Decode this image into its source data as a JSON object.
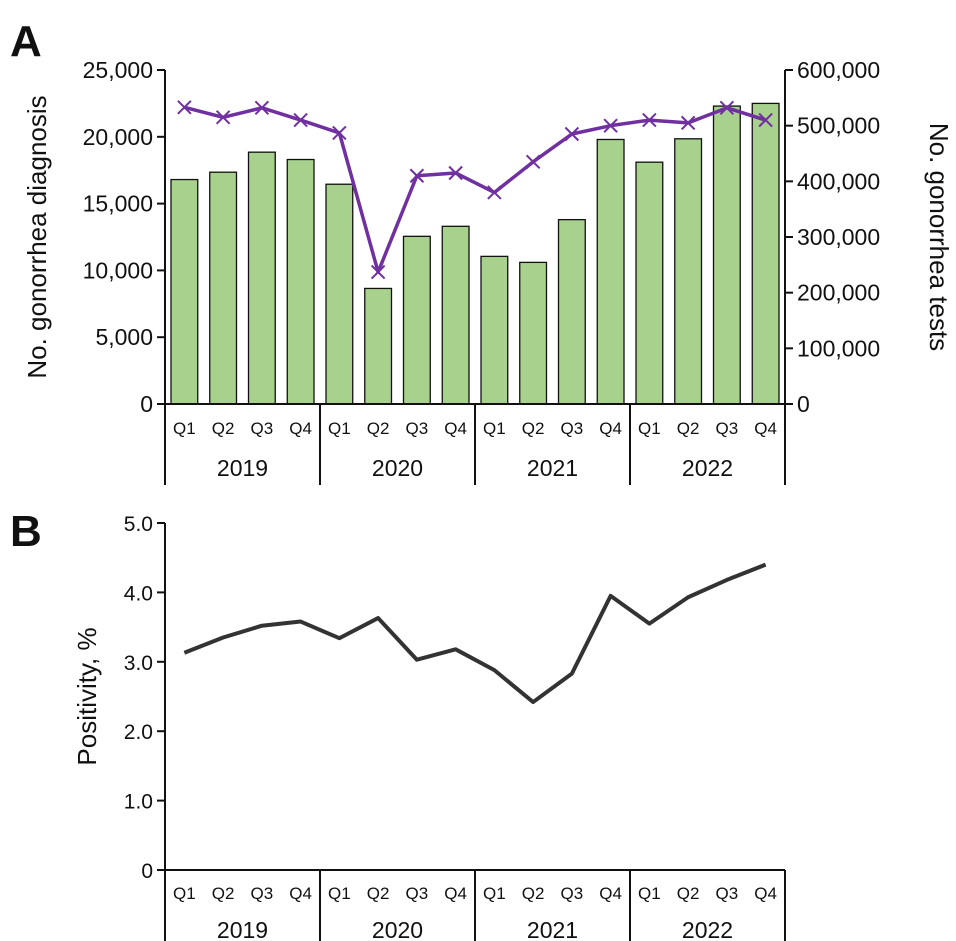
{
  "chart_data": [
    {
      "panel": "A",
      "type": "bar",
      "categories": [
        "Q1",
        "Q2",
        "Q3",
        "Q4",
        "Q1",
        "Q2",
        "Q3",
        "Q4",
        "Q1",
        "Q2",
        "Q3",
        "Q4",
        "Q1",
        "Q2",
        "Q3",
        "Q4"
      ],
      "groups": [
        {
          "label": "2019",
          "start": 0,
          "end": 3
        },
        {
          "label": "2020",
          "start": 4,
          "end": 7
        },
        {
          "label": "2021",
          "start": 8,
          "end": 11
        },
        {
          "label": "2022",
          "start": 12,
          "end": 15
        }
      ],
      "series": [
        {
          "kind": "bar",
          "axis": "left",
          "color": "#a9d18e",
          "values": [
            16800,
            17350,
            18850,
            18300,
            16450,
            8650,
            12550,
            13300,
            11050,
            10600,
            13800,
            19800,
            18100,
            19850,
            22300,
            22500
          ]
        },
        {
          "kind": "line",
          "axis": "right",
          "color": "#7030a0",
          "marker": "x",
          "values": [
            533000,
            515000,
            532000,
            510000,
            487000,
            237000,
            410000,
            415000,
            380000,
            435000,
            485000,
            500000,
            510000,
            505000,
            532000,
            510000
          ]
        }
      ],
      "ylabel": "No. gonorrhea diagnosis",
      "y2label": "No. gonorrhea tests",
      "ylim": [
        0,
        25000
      ],
      "y2lim": [
        0,
        600000
      ],
      "yticks": [
        "0",
        "5,000",
        "10,000",
        "15,000",
        "20,000",
        "25,000"
      ],
      "y2ticks": [
        "0",
        "100,000",
        "200,000",
        "300,000",
        "400,000",
        "500,000",
        "600,000"
      ]
    },
    {
      "panel": "B",
      "type": "line",
      "categories": [
        "Q1",
        "Q2",
        "Q3",
        "Q4",
        "Q1",
        "Q2",
        "Q3",
        "Q4",
        "Q1",
        "Q2",
        "Q3",
        "Q4",
        "Q1",
        "Q2",
        "Q3",
        "Q4"
      ],
      "groups": [
        {
          "label": "2019",
          "start": 0,
          "end": 3
        },
        {
          "label": "2020",
          "start": 4,
          "end": 7
        },
        {
          "label": "2021",
          "start": 8,
          "end": 11
        },
        {
          "label": "2022",
          "start": 12,
          "end": 15
        }
      ],
      "series": [
        {
          "kind": "line",
          "color": "#333333",
          "values": [
            3.13,
            3.35,
            3.52,
            3.58,
            3.34,
            3.63,
            3.03,
            3.18,
            2.88,
            2.42,
            2.83,
            3.95,
            3.55,
            3.93,
            4.18,
            4.4
          ]
        }
      ],
      "ylabel": "Positivity, %",
      "ylim": [
        0,
        5
      ],
      "yticks": [
        "0",
        "1.0",
        "2.0",
        "3.0",
        "4.0",
        "5.0"
      ]
    }
  ],
  "panels": {
    "a_label": "A",
    "b_label": "B"
  }
}
